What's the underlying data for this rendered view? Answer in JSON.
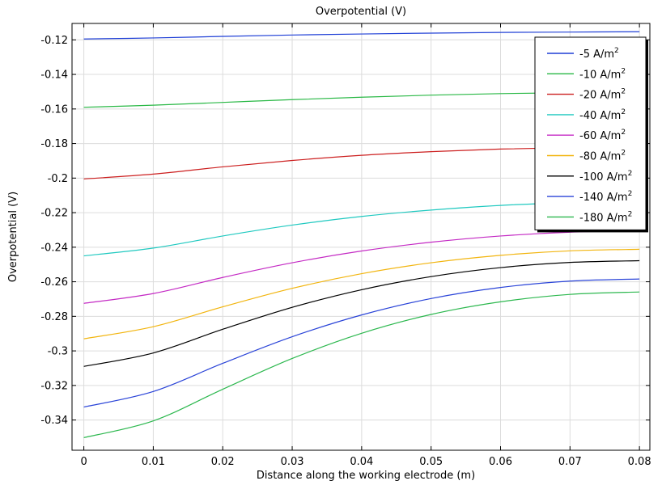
{
  "chart_data": {
    "type": "line",
    "title": "Overpotential (V)",
    "xlabel": "Distance along the working electrode (m)",
    "ylabel": "Overpotential (V)",
    "xlim": [
      -0.0017,
      0.0815
    ],
    "ylim": [
      -0.3575,
      -0.1105
    ],
    "x_ticks": [
      0,
      0.01,
      0.02,
      0.03,
      0.04,
      0.05,
      0.06,
      0.07,
      0.08
    ],
    "x_tick_labels": [
      "0",
      "0.01",
      "0.02",
      "0.03",
      "0.04",
      "0.05",
      "0.06",
      "0.07",
      "0.08"
    ],
    "y_ticks": [
      -0.12,
      -0.14,
      -0.16,
      -0.18,
      -0.2,
      -0.22,
      -0.24,
      -0.26,
      -0.28,
      -0.3,
      -0.32,
      -0.34
    ],
    "y_tick_labels": [
      "-0.12",
      "-0.14",
      "-0.16",
      "-0.18",
      "-0.2",
      "-0.22",
      "-0.24",
      "-0.26",
      "-0.28",
      "-0.3",
      "-0.32",
      "-0.34"
    ],
    "grid": true,
    "legend_position": "top-right",
    "x": [
      0,
      0.01,
      0.02,
      0.03,
      0.04,
      0.05,
      0.06,
      0.07,
      0.08
    ],
    "series": [
      {
        "name": "-5",
        "unit": "A/m",
        "exp": "2",
        "color": "#1f3fd6",
        "values": [
          -0.1195,
          -0.1189,
          -0.118,
          -0.1172,
          -0.1166,
          -0.1161,
          -0.1157,
          -0.1155,
          -0.1153
        ]
      },
      {
        "name": "-10",
        "unit": "A/m",
        "exp": "2",
        "color": "#29b845",
        "values": [
          -0.159,
          -0.1578,
          -0.1562,
          -0.1546,
          -0.1532,
          -0.152,
          -0.1511,
          -0.1506,
          -0.1503
        ]
      },
      {
        "name": "-20",
        "unit": "A/m",
        "exp": "2",
        "color": "#cc1f1f",
        "values": [
          -0.2005,
          -0.1977,
          -0.1935,
          -0.1898,
          -0.1868,
          -0.1847,
          -0.1832,
          -0.1824,
          -0.1821
        ]
      },
      {
        "name": "-40",
        "unit": "A/m",
        "exp": "2",
        "color": "#20c9c0",
        "values": [
          -0.245,
          -0.2405,
          -0.2335,
          -0.2272,
          -0.2222,
          -0.2185,
          -0.2158,
          -0.2143,
          -0.2138
        ]
      },
      {
        "name": "-60",
        "unit": "A/m",
        "exp": "2",
        "color": "#c42ac4",
        "values": [
          -0.2725,
          -0.2668,
          -0.2575,
          -0.249,
          -0.2422,
          -0.2371,
          -0.2335,
          -0.2313,
          -0.2305
        ]
      },
      {
        "name": "-80",
        "unit": "A/m",
        "exp": "2",
        "color": "#f2b50f",
        "values": [
          -0.293,
          -0.286,
          -0.2745,
          -0.2638,
          -0.2553,
          -0.249,
          -0.2447,
          -0.2421,
          -0.2412
        ]
      },
      {
        "name": "-100",
        "unit": "A/m",
        "exp": "2",
        "color": "#000000",
        "values": [
          -0.309,
          -0.3012,
          -0.2875,
          -0.2748,
          -0.2646,
          -0.257,
          -0.2518,
          -0.2488,
          -0.2478
        ]
      },
      {
        "name": "-140",
        "unit": "A/m",
        "exp": "2",
        "color": "#2a44d8",
        "values": [
          -0.3325,
          -0.3235,
          -0.3072,
          -0.2918,
          -0.2792,
          -0.2697,
          -0.2633,
          -0.2596,
          -0.2584
        ]
      },
      {
        "name": "-180",
        "unit": "A/m",
        "exp": "2",
        "color": "#2db84f",
        "values": [
          -0.3502,
          -0.3405,
          -0.3222,
          -0.3044,
          -0.2898,
          -0.2789,
          -0.2716,
          -0.2673,
          -0.2659
        ]
      }
    ]
  }
}
